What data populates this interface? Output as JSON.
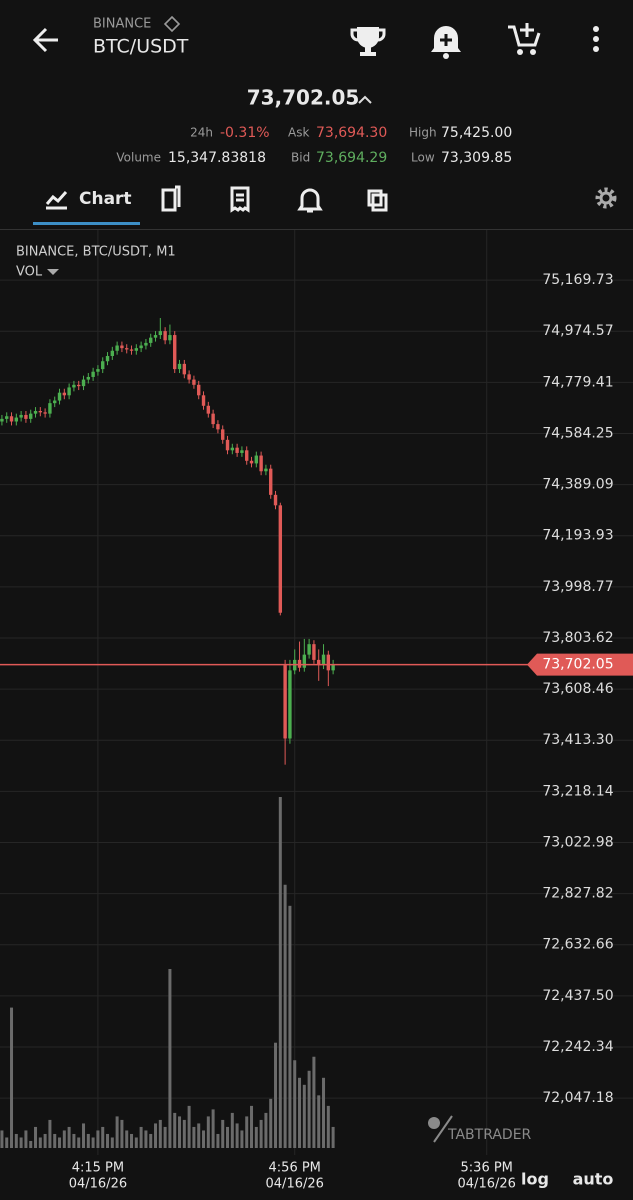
{
  "header": {
    "exchange": "BINANCE",
    "pair": "BTC/USDT",
    "icons": [
      "trophy",
      "alerts",
      "add-to-cart",
      "menu"
    ]
  },
  "ticker": {
    "price": "73,702.05",
    "change_label": "24h",
    "change": "-0.31%",
    "ask_label": "Ask",
    "ask": "73,694.30",
    "high_label": "High",
    "high": "75,425.00",
    "volume_label": "Volume",
    "volume": "15,347.83818",
    "bid_label": "Bid",
    "bid": "73,694.29",
    "low_label": "Low",
    "low": "73,309.85"
  },
  "tabs": {
    "active": "Chart"
  },
  "chart": {
    "type": "candlestick",
    "legend": "BINANCE, BTC/USDT, M1",
    "volume_label": "VOL",
    "watermark": "TABTRADER",
    "up_color": "#4caf50",
    "down_color": "#e05a57",
    "volume_color": "#6b6b6b",
    "grid": true,
    "ylim": [
      71830,
      75361
    ],
    "xlim": [
      -0.4,
      112.1
    ],
    "vlim": [
      0,
      100
    ],
    "yticks": [
      {
        "value": 75169.73,
        "label": "75,169.73"
      },
      {
        "value": 74974.57,
        "label": "74,974.57"
      },
      {
        "value": 74779.41,
        "label": "74,779.41"
      },
      {
        "value": 74584.25,
        "label": "74,584.25"
      },
      {
        "value": 74389.09,
        "label": "74,389.09"
      },
      {
        "value": 74193.93,
        "label": "74,193.93"
      },
      {
        "value": 73998.77,
        "label": "73,998.77"
      },
      {
        "value": 73803.62,
        "label": "73,803.62"
      },
      {
        "value": 73608.46,
        "label": "73,608.46"
      },
      {
        "value": 73413.3,
        "label": "73,413.30"
      },
      {
        "value": 73218.14,
        "label": "73,218.14"
      },
      {
        "value": 73022.98,
        "label": "73,022.98"
      },
      {
        "value": 72827.82,
        "label": "72,827.82"
      },
      {
        "value": 72632.66,
        "label": "72,632.66"
      },
      {
        "value": 72437.5,
        "label": "72,437.50"
      },
      {
        "value": 72242.34,
        "label": "72,242.34"
      },
      {
        "value": 72047.18,
        "label": "72,047.18"
      }
    ],
    "xticks": [
      {
        "value": 20,
        "label": "4:15 PM"
      },
      {
        "value": 61,
        "label": "4:56 PM"
      },
      {
        "value": 101,
        "label": "5:36 PM"
      }
    ],
    "xtick_dates": [
      "04/16/26",
      "04/16/26",
      "04/16/26"
    ],
    "last_price": {
      "value": 73702.05,
      "label": "73,702.05"
    },
    "scale_modes": [
      "log",
      "auto"
    ],
    "candles": [
      [
        74630,
        74655,
        74615,
        74640
      ],
      [
        74640,
        74665,
        74625,
        74650
      ],
      [
        74650,
        74665,
        74615,
        74630
      ],
      [
        74630,
        74660,
        74615,
        74645
      ],
      [
        74645,
        74670,
        74630,
        74655
      ],
      [
        74655,
        74670,
        74625,
        74640
      ],
      [
        74640,
        74675,
        74625,
        74660
      ],
      [
        74660,
        74685,
        74645,
        74670
      ],
      [
        74670,
        74685,
        74650,
        74665
      ],
      [
        74665,
        74680,
        74645,
        74660
      ],
      [
        74660,
        74715,
        74645,
        74700
      ],
      [
        74700,
        74725,
        74685,
        74710
      ],
      [
        74710,
        74755,
        74695,
        74740
      ],
      [
        74740,
        74755,
        74715,
        74730
      ],
      [
        74730,
        74775,
        74715,
        74760
      ],
      [
        74760,
        74785,
        74745,
        74770
      ],
      [
        74770,
        74785,
        74750,
        74765
      ],
      [
        74765,
        74805,
        74750,
        74790
      ],
      [
        74790,
        74815,
        74775,
        74800
      ],
      [
        74800,
        74835,
        74785,
        74820
      ],
      [
        74820,
        74845,
        74805,
        74830
      ],
      [
        74830,
        74875,
        74815,
        74860
      ],
      [
        74860,
        74895,
        74845,
        74880
      ],
      [
        74880,
        74915,
        74865,
        74900
      ],
      [
        74900,
        74935,
        74885,
        74920
      ],
      [
        74920,
        74935,
        74895,
        74910
      ],
      [
        74910,
        74925,
        74890,
        74905
      ],
      [
        74905,
        74920,
        74885,
        74900
      ],
      [
        74900,
        74925,
        74885,
        74910
      ],
      [
        74910,
        74935,
        74895,
        74920
      ],
      [
        74920,
        74945,
        74905,
        74930
      ],
      [
        74930,
        74965,
        74915,
        74950
      ],
      [
        74950,
        74975,
        74935,
        74960
      ],
      [
        74960,
        75025,
        74945,
        74975
      ],
      [
        74975,
        74990,
        74925,
        74940
      ],
      [
        74940,
        75000,
        74925,
        74960
      ],
      [
        74960,
        74975,
        74815,
        74830
      ],
      [
        74830,
        74865,
        74815,
        74850
      ],
      [
        74850,
        74865,
        74795,
        74810
      ],
      [
        74810,
        74825,
        74775,
        74790
      ],
      [
        74790,
        74805,
        74755,
        74770
      ],
      [
        74770,
        74785,
        74715,
        74730
      ],
      [
        74730,
        74745,
        74675,
        74690
      ],
      [
        74690,
        74705,
        74645,
        74660
      ],
      [
        74660,
        74675,
        74605,
        74620
      ],
      [
        74620,
        74635,
        74585,
        74600
      ],
      [
        74600,
        74615,
        74545,
        74560
      ],
      [
        74560,
        74575,
        74505,
        74520
      ],
      [
        74520,
        74545,
        74505,
        74530
      ],
      [
        74530,
        74545,
        74495,
        74510
      ],
      [
        74510,
        74535,
        74495,
        74520
      ],
      [
        74520,
        74535,
        74465,
        74480
      ],
      [
        74480,
        74495,
        74455,
        74470
      ],
      [
        74470,
        74515,
        74455,
        74500
      ],
      [
        74500,
        74515,
        74425,
        74440
      ],
      [
        74440,
        74465,
        74425,
        74450
      ],
      [
        74450,
        74465,
        74335,
        74350
      ],
      [
        74350,
        74365,
        74295,
        74310
      ],
      [
        74310,
        74320,
        73890,
        73900
      ],
      [
        73700,
        73720,
        73320,
        73420
      ],
      [
        73420,
        73720,
        73400,
        73680
      ],
      [
        73680,
        73760,
        73665,
        73720
      ],
      [
        73720,
        73790,
        73675,
        73690
      ],
      [
        73690,
        73800,
        73675,
        73740
      ],
      [
        73740,
        73800,
        73725,
        73780
      ],
      [
        73780,
        73795,
        73705,
        73720
      ],
      [
        73720,
        73760,
        73640,
        73700
      ],
      [
        73700,
        73780,
        73685,
        73740
      ],
      [
        73740,
        73755,
        73620,
        73680
      ],
      [
        73680,
        73720,
        73665,
        73702.05
      ]
    ],
    "volumes": [
      5,
      3,
      40,
      4,
      3,
      5,
      2,
      6,
      3,
      4,
      8,
      4,
      3,
      5,
      6,
      4,
      3,
      7,
      4,
      3,
      5,
      6,
      4,
      3,
      9,
      8,
      5,
      4,
      3,
      6,
      5,
      4,
      7,
      8,
      6,
      51,
      10,
      9,
      8,
      12,
      6,
      7,
      5,
      9,
      11,
      4,
      8,
      6,
      10,
      7,
      5,
      9,
      12,
      6,
      8,
      10,
      14,
      30,
      100,
      75,
      69,
      25,
      20,
      18,
      22,
      26,
      15,
      20,
      12,
      6
    ]
  }
}
